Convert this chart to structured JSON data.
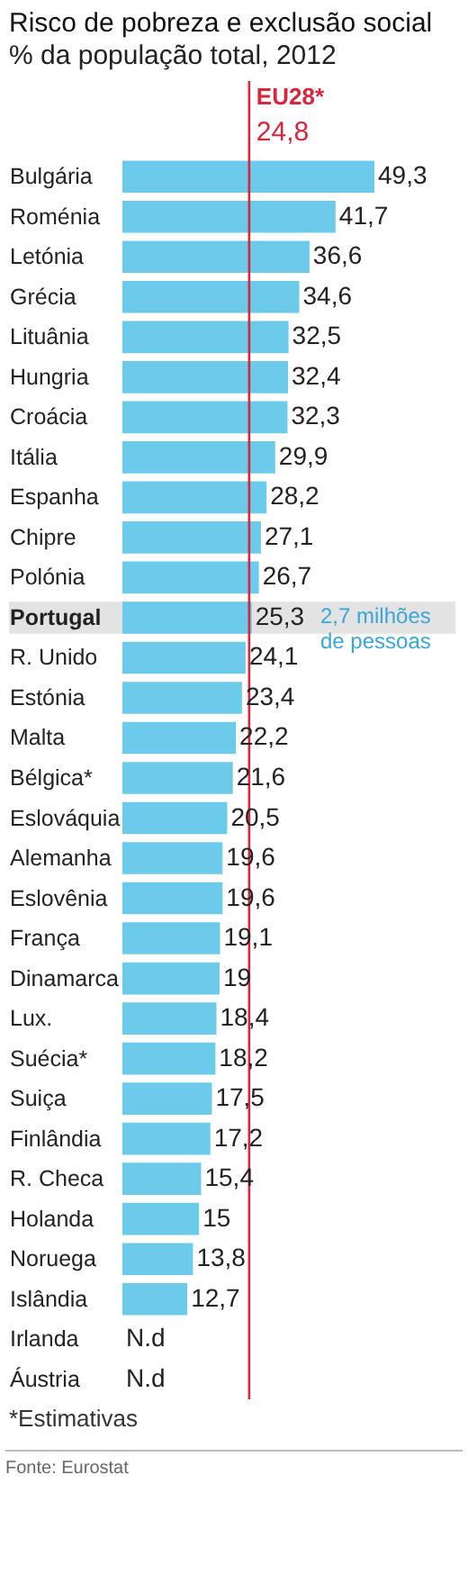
{
  "chart_data": {
    "type": "bar",
    "orientation": "horizontal",
    "title": "Risco de pobreza e exclusão social",
    "subtitle": "% da população total, 2012",
    "categories": [
      "Bulgária",
      "Roménia",
      "Letónia",
      "Grécia",
      "Lituânia",
      "Hungria",
      "Croácia",
      "Itália",
      "Espanha",
      "Chipre",
      "Polónia",
      "Portugal",
      "R. Unido",
      "Estónia",
      "Malta",
      "Bélgica*",
      "Eslováquia",
      "Alemanha",
      "Eslovênia",
      "França",
      "Dinamarca",
      "Lux.",
      "Suécia*",
      "Suiça",
      "Finlândia",
      "R. Checa",
      "Holanda",
      "Noruega",
      "Islândia",
      "Irlanda",
      "Áustria"
    ],
    "values": [
      49.3,
      41.7,
      36.6,
      34.6,
      32.5,
      32.4,
      32.3,
      29.9,
      28.2,
      27.1,
      26.7,
      25.3,
      24.1,
      23.4,
      22.2,
      21.6,
      20.5,
      19.6,
      19.6,
      19.1,
      19,
      18.4,
      18.2,
      17.5,
      17.2,
      15.4,
      15,
      13.8,
      12.7,
      null,
      null
    ],
    "value_labels": [
      "49,3",
      "41,7",
      "36,6",
      "34,6",
      "32,5",
      "32,4",
      "32,3",
      "29,9",
      "28,2",
      "27,1",
      "26,7",
      "25,3",
      "24,1",
      "23,4",
      "22,2",
      "21,6",
      "20,5",
      "19,6",
      "19,6",
      "19,1",
      "19",
      "18,4",
      "18,2",
      "17,5",
      "17,2",
      "15,4",
      "15",
      "13,8",
      "12,7",
      "N.d",
      "N.d"
    ],
    "color": "#6ccbea",
    "ref_lines": [
      {
        "axis": "x",
        "value": 24.8,
        "label": "EU28*",
        "color": "#d7263d"
      }
    ],
    "bands": [
      {
        "axis": "y",
        "from": "Portugal",
        "to": "Portugal",
        "color": "#e3e3e3"
      }
    ],
    "annotations": [
      {
        "text": "24,8",
        "x": 24.8
      },
      "2,7 milhões de pessoas",
      "*Estimativas",
      "Fonte: Eurostat"
    ]
  }
}
